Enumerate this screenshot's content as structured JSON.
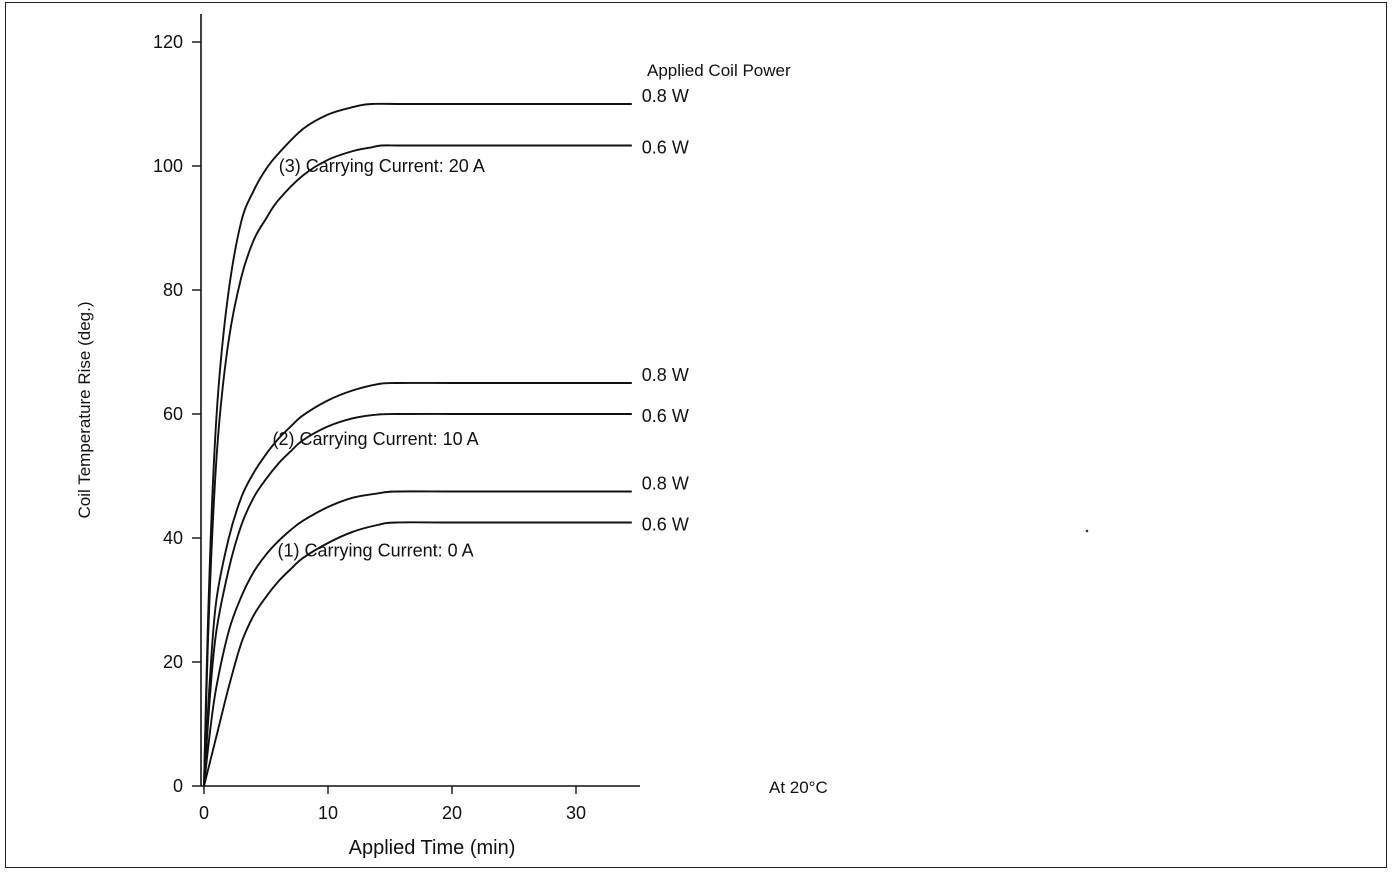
{
  "chart_data": {
    "type": "line",
    "xlabel": "Applied Time (min)",
    "ylabel": "Coil Temperature Rise (deg.)",
    "xlim": [
      0,
      35
    ],
    "ylim": [
      0,
      120
    ],
    "x_ticks": [
      0,
      10,
      20,
      30
    ],
    "y_ticks": [
      0,
      20,
      40,
      60,
      80,
      100,
      120
    ],
    "grid": false,
    "legend_title": "Applied Coil Power",
    "note": "At 20°C",
    "groups": [
      {
        "label": "(3)  Carrying Current: 20 A",
        "label_at": [
          14.5,
          99
        ]
      },
      {
        "label": "(2)  Carrying Current: 10 A",
        "label_at": [
          14.0,
          55
        ]
      },
      {
        "label": "(1)  Carrying Current: 0 A",
        "label_at": [
          14.0,
          37
        ]
      }
    ],
    "series": [
      {
        "name": "0.8 W",
        "group": 0,
        "x": [
          0,
          0.3,
          0.7,
          1.2,
          2,
          3,
          4,
          5,
          6,
          8,
          10,
          12,
          13.5,
          16,
          20,
          25,
          30,
          34.5
        ],
        "y": [
          0,
          25,
          48,
          65,
          80,
          91,
          96,
          99.5,
          102,
          106,
          108.3,
          109.5,
          110,
          110,
          110,
          110,
          110,
          110
        ]
      },
      {
        "name": "0.6 W",
        "group": 0,
        "x": [
          0,
          0.3,
          0.7,
          1.2,
          2,
          3,
          4,
          5,
          6,
          8,
          10,
          12,
          13.5,
          14.3,
          16,
          20,
          25,
          30,
          34.5
        ],
        "y": [
          0,
          22,
          42,
          58,
          72,
          82,
          88,
          91.5,
          94.5,
          98.5,
          101,
          102.4,
          103,
          103.3,
          103.3,
          103.3,
          103.3,
          103.3,
          103.3
        ]
      },
      {
        "name": "0.8 W",
        "group": 1,
        "x": [
          0,
          0.5,
          1,
          2,
          3,
          4,
          5,
          6,
          7,
          8,
          10,
          12,
          14,
          15.5,
          20,
          25,
          30,
          34.5
        ],
        "y": [
          0,
          18,
          30,
          40,
          46.5,
          50.5,
          53.5,
          56,
          58,
          59.8,
          62.2,
          63.8,
          64.8,
          65,
          65,
          65,
          65,
          65
        ]
      },
      {
        "name": "0.6 W",
        "group": 1,
        "x": [
          0,
          0.5,
          1,
          2,
          3,
          4,
          5,
          6,
          7,
          8,
          10,
          12,
          14,
          15.5,
          20,
          25,
          30,
          34.5
        ],
        "y": [
          0,
          15,
          25,
          35,
          42,
          46.5,
          49.5,
          52,
          54,
          55.8,
          58,
          59.3,
          59.9,
          60,
          60,
          60,
          60,
          60
        ]
      },
      {
        "name": "0.8 W",
        "group": 2,
        "x": [
          0,
          0.5,
          1,
          2,
          3,
          4,
          5,
          6,
          7,
          8,
          10,
          12,
          14,
          15.5,
          20,
          25,
          30,
          34.5
        ],
        "y": [
          0,
          9,
          16,
          25,
          30.5,
          34.5,
          37.3,
          39.5,
          41.3,
          42.8,
          45,
          46.5,
          47.2,
          47.5,
          47.5,
          47.5,
          47.5,
          47.5
        ]
      },
      {
        "name": "0.6 W",
        "group": 2,
        "x": [
          0,
          0.5,
          1,
          2,
          3,
          4,
          5,
          6,
          7,
          8,
          10,
          12,
          14,
          15.5,
          20,
          25,
          30,
          34.5
        ],
        "y": [
          0,
          4,
          8,
          16,
          23,
          27.5,
          30.5,
          33,
          35,
          36.8,
          39.2,
          41,
          42.1,
          42.5,
          42.5,
          42.5,
          42.5,
          42.5
        ]
      }
    ]
  }
}
